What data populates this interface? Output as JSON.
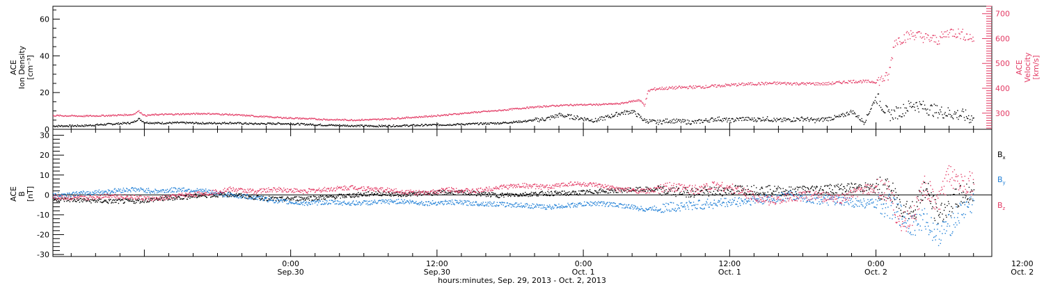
{
  "colors": {
    "black": "#000000",
    "red": "#e33a64",
    "blue": "#1f7fd6",
    "axis": "#000000"
  },
  "chart_data": [
    {
      "type": "scatter",
      "panel": "top",
      "ylabel_left": [
        "ACE",
        "Ion Density",
        "[cm⁻³]"
      ],
      "ylabel_right": [
        "ACE",
        "Velocity",
        "[km/s]"
      ],
      "ylim_left": [
        0,
        67
      ],
      "yticks_left": [
        "0",
        "20",
        "40",
        "60"
      ],
      "ylim_right": [
        235,
        730
      ],
      "yticks_right": [
        "300",
        "400",
        "500",
        "600",
        "700"
      ],
      "x_hours_range": [
        -19.5,
        57.5
      ],
      "series": [
        {
          "axis": "left",
          "color": "black",
          "x": [
            -19.5,
            -17,
            -15,
            -13,
            -12.5,
            -12,
            -11,
            -9,
            -7,
            -5,
            -3,
            -1,
            1,
            3,
            5,
            7,
            9,
            11,
            13,
            15,
            17,
            19,
            21,
            22,
            23,
            24,
            25,
            26,
            27,
            28,
            29,
            30,
            31,
            32,
            33,
            34,
            35,
            36,
            37,
            38,
            39,
            40,
            41,
            42,
            43,
            44,
            45,
            46,
            47,
            48,
            49,
            50,
            51,
            52,
            53,
            54,
            55,
            56
          ],
          "y": [
            2,
            2.2,
            3,
            3.8,
            6,
            4,
            3.6,
            3.8,
            3.5,
            3.7,
            3.2,
            3.4,
            3,
            2.5,
            2.2,
            2,
            2.2,
            2.5,
            2.8,
            3.2,
            3.6,
            4.5,
            6,
            8,
            7,
            6,
            5,
            7,
            9,
            10,
            5,
            4,
            5,
            4.5,
            4,
            5,
            6,
            5,
            6,
            5.5,
            6,
            5,
            5.5,
            6,
            5,
            6,
            7,
            10,
            4,
            18,
            8,
            10,
            14,
            12,
            10,
            9,
            8,
            6
          ]
        },
        {
          "axis": "right",
          "color": "red",
          "x": [
            -19.5,
            -17,
            -15,
            -13,
            -12.5,
            -12,
            -11,
            -9,
            -7,
            -5,
            -3,
            -1,
            1,
            3,
            5,
            7,
            9,
            11,
            13,
            15,
            17,
            19,
            21,
            23,
            25,
            27,
            28,
            28.5,
            29,
            29.3,
            29.5,
            30,
            32,
            34,
            36,
            38,
            40,
            42,
            44,
            46,
            48,
            49,
            49.5,
            50,
            51,
            52,
            53,
            54,
            55,
            56
          ],
          "y": [
            292,
            290,
            292,
            296,
            310,
            292,
            296,
            298,
            300,
            296,
            290,
            284,
            280,
            276,
            274,
            276,
            282,
            288,
            296,
            305,
            312,
            322,
            330,
            335,
            336,
            340,
            350,
            355,
            335,
            390,
            395,
            400,
            405,
            408,
            415,
            420,
            422,
            420,
            420,
            430,
            428,
            450,
            590,
            600,
            620,
            605,
            595,
            630,
            620,
            600
          ]
        }
      ]
    },
    {
      "type": "scatter",
      "panel": "bottom",
      "ylabel_left": [
        "ACE",
        "B",
        "[nT]"
      ],
      "ylim": [
        -31,
        33
      ],
      "yticks": [
        "-30",
        "-20",
        "-10",
        "0",
        "10",
        "20",
        "30"
      ],
      "x_hours_range": [
        -19.5,
        57.5
      ],
      "series": [
        {
          "name": "Bx",
          "color": "black",
          "x": [
            -19.5,
            -17,
            -15,
            -13,
            -11,
            -9,
            -7,
            -5,
            -3,
            -1,
            1,
            3,
            5,
            7,
            9,
            11,
            13,
            15,
            17,
            19,
            21,
            23,
            25,
            27,
            29,
            31,
            33,
            35,
            37,
            39,
            41,
            43,
            45,
            47,
            49,
            50,
            51,
            52,
            53,
            54,
            55,
            56
          ],
          "y": [
            -2,
            -2.5,
            -3,
            -3,
            -2,
            -1,
            0,
            0.5,
            -1,
            -2,
            -1.5,
            -1,
            0,
            1,
            0.5,
            1,
            1.5,
            1,
            0,
            0.5,
            1,
            1,
            2,
            2.5,
            3,
            2,
            1.5,
            2,
            3,
            2.5,
            2,
            3,
            3.5,
            4,
            3,
            -5,
            -8,
            4,
            -10,
            -5,
            0,
            2
          ]
        },
        {
          "name": "By",
          "color": "blue",
          "x": [
            -19.5,
            -17,
            -15,
            -13,
            -11,
            -9,
            -7,
            -5,
            -3,
            -1,
            1,
            3,
            5,
            7,
            9,
            11,
            13,
            15,
            17,
            19,
            21,
            23,
            25,
            27,
            29,
            31,
            33,
            35,
            37,
            39,
            41,
            43,
            45,
            47,
            49,
            50,
            51,
            52,
            53,
            54,
            55,
            56
          ],
          "y": [
            0,
            1,
            2,
            3,
            2,
            3,
            2,
            0,
            -1,
            -3,
            -4,
            -3.5,
            -4,
            -3.5,
            -3,
            -4,
            -3.5,
            -4,
            -4.5,
            -5,
            -6,
            -5,
            -4,
            -5,
            -7,
            -6,
            -5,
            -4,
            -3,
            -2,
            0,
            -2,
            -3,
            -4,
            -5,
            -10,
            -15,
            -12,
            -20,
            -15,
            -8,
            -3
          ]
        },
        {
          "name": "Bz",
          "color": "red",
          "x": [
            -19.5,
            -17,
            -15,
            -13,
            -11,
            -9,
            -7,
            -5,
            -3,
            -1,
            1,
            3,
            5,
            7,
            9,
            11,
            13,
            15,
            17,
            19,
            21,
            23,
            25,
            27,
            29,
            31,
            33,
            35,
            37,
            39,
            41,
            43,
            45,
            47,
            49,
            50,
            51,
            52,
            53,
            54,
            55,
            56
          ],
          "y": [
            -1,
            -1.5,
            0,
            -1,
            -2,
            0,
            1,
            3,
            2,
            3,
            2,
            3,
            4,
            3,
            2,
            1,
            3,
            2,
            4,
            5,
            4,
            6,
            5,
            3,
            2,
            4,
            3,
            5,
            2,
            -3,
            -1,
            0,
            -2,
            3,
            2,
            -15,
            -10,
            5,
            -5,
            10,
            8,
            5
          ]
        }
      ],
      "legend": [
        "B",
        "B",
        "B"
      ],
      "legend_sub": [
        "x",
        "y",
        "z"
      ]
    }
  ],
  "x_axis": {
    "ticks": [
      {
        "hour": 0,
        "time": "0:00",
        "date": "Sep.30"
      },
      {
        "hour": 12,
        "time": "12:00",
        "date": "Sep.30"
      },
      {
        "hour": 24,
        "time": "0:00",
        "date": "Oct. 1"
      },
      {
        "hour": 36,
        "time": "12:00",
        "date": "Oct. 1"
      },
      {
        "hour": 48,
        "time": "0:00",
        "date": "Oct. 2"
      },
      {
        "hour": 60,
        "time": "12:00",
        "date": "Oct. 2"
      }
    ],
    "title": "hours:minutes, Sep. 29, 2013 - Oct.  2, 2013"
  }
}
